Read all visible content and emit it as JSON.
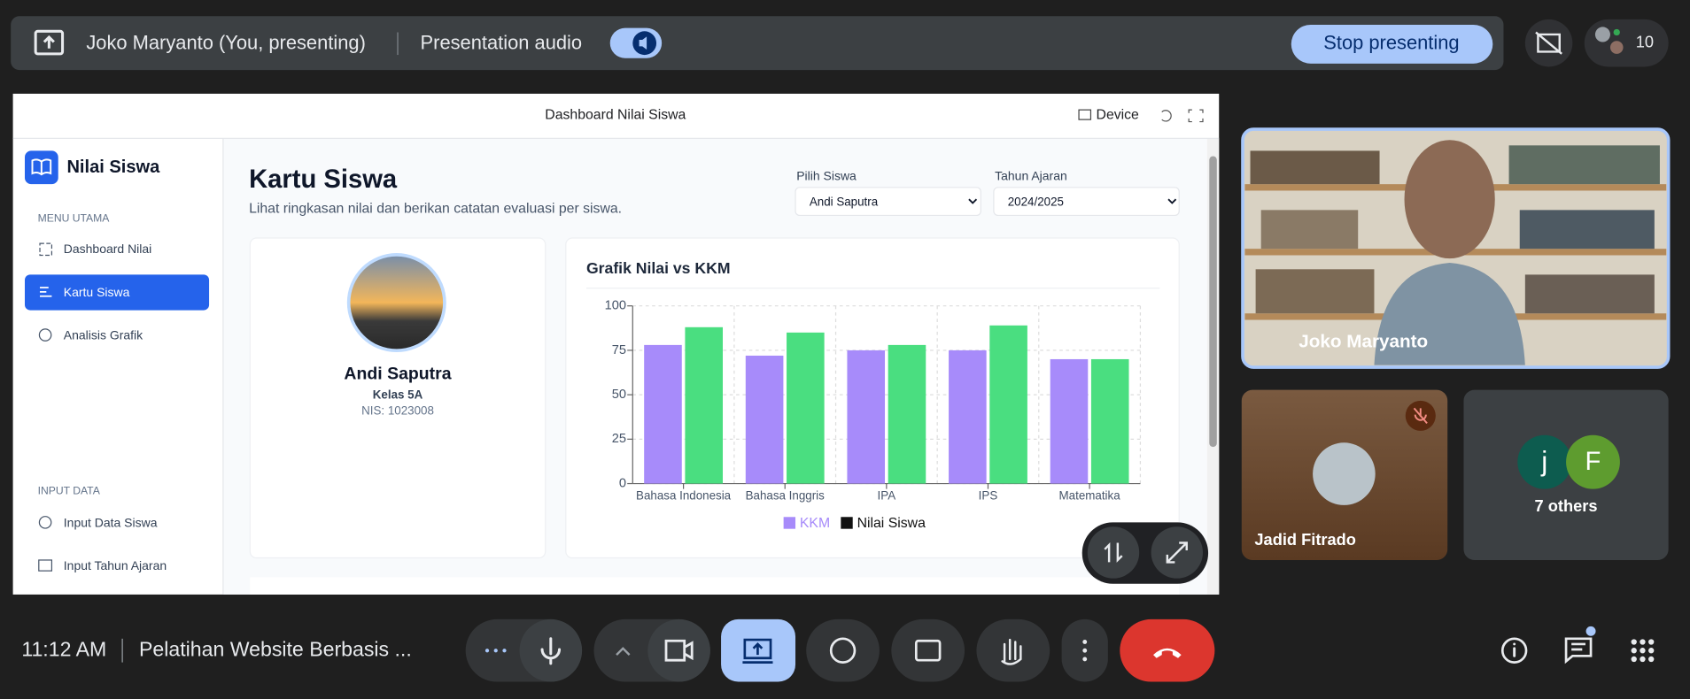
{
  "meet_bar": {
    "presenter": "Joko Maryanto (You, presenting)",
    "audio": "Presentation audio",
    "stop": "Stop presenting",
    "participants": 10
  },
  "window": {
    "title": "Dashboard Nilai Siswa",
    "device": "Device"
  },
  "sidebar": {
    "brand": "Nilai Siswa",
    "sections": [
      {
        "heading": "MENU UTAMA",
        "items": [
          "Dashboard Nilai",
          "Kartu Siswa",
          "Analisis Grafik"
        ]
      },
      {
        "heading": "INPUT DATA",
        "items": [
          "Input Data Siswa",
          "Input Tahun Ajaran"
        ]
      }
    ]
  },
  "page": {
    "title": "Kartu Siswa",
    "subtitle": "Lihat ringkasan nilai dan berikan catatan evaluasi per siswa.",
    "filters": [
      {
        "label": "Pilih Siswa",
        "value": "Andi Saputra"
      },
      {
        "label": "Tahun Ajaran",
        "value": "2024/2025"
      }
    ]
  },
  "profile": {
    "name": "Andi Saputra",
    "class": "Kelas 5A",
    "nis": "NIS: 1023008"
  },
  "chart_data": {
    "type": "bar",
    "title": "Grafik Nilai vs KKM",
    "categories": [
      "Bahasa Indonesia",
      "Bahasa Inggris",
      "IPA",
      "IPS",
      "Matematika"
    ],
    "series": [
      {
        "name": "KKM",
        "color": "#a78bfa",
        "legend_color": "#a78bfa",
        "values": [
          78,
          72,
          75,
          75,
          70
        ]
      },
      {
        "name": "Nilai Siswa",
        "color": "#4ade80",
        "legend_color": "#111111",
        "values": [
          88,
          85,
          78,
          89,
          70
        ]
      }
    ],
    "ylim": [
      0,
      100
    ],
    "yticks": [
      0,
      25,
      50,
      75,
      100
    ],
    "grid": true,
    "legend": "bottom"
  },
  "tiles": [
    {
      "name": "Joko Maryanto"
    },
    {
      "name": "Jadid Fitrado"
    },
    {
      "initials": [
        "j",
        "F"
      ],
      "label": "7 others"
    }
  ],
  "footer": {
    "time": "11:12 AM",
    "meeting": "Pelatihan Website Berbasis ..."
  }
}
